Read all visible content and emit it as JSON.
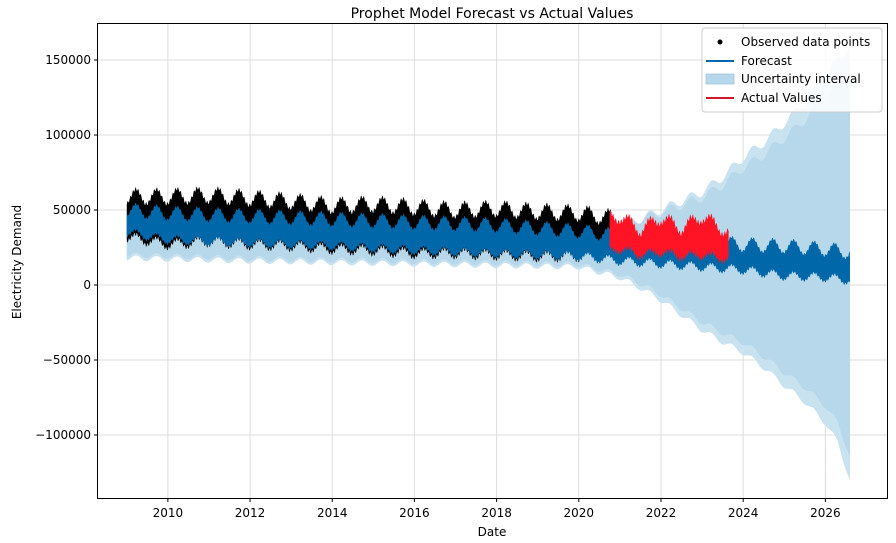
{
  "chart_data": {
    "type": "line",
    "title": "Prophet Model Forecast vs Actual Values",
    "xlabel": "Date",
    "ylabel": "Electricity Demand",
    "xlim": [
      2008.3,
      2027.5
    ],
    "ylim": [
      -142000,
      174000
    ],
    "x_ticks": [
      2010,
      2012,
      2014,
      2016,
      2018,
      2020,
      2022,
      2024,
      2026
    ],
    "y_ticks": [
      -100000,
      -50000,
      0,
      50000,
      100000,
      150000
    ],
    "y_tick_labels": [
      "−100000",
      "−50000",
      "0",
      "50000",
      "100000",
      "150000"
    ],
    "grid": true,
    "legend_position": "top-right",
    "legend": {
      "observed": "Observed data points",
      "forecast": "Forecast",
      "uncertainty": "Uncertainty interval",
      "actual": "Actual Values"
    },
    "colors": {
      "observed": "#000000",
      "forecast": "#0067a8",
      "uncertainty": "#b7d8ea",
      "uncertainty_light": "#c9e2f0",
      "actual": "#ff1426",
      "grid": "#dddddd"
    },
    "observed_range": [
      2009.0,
      2020.8
    ],
    "actual_range": [
      2020.75,
      2023.65
    ],
    "forecast_range": [
      2009.0,
      2026.6
    ],
    "observed_envelope": {
      "x": [
        2009.0,
        2010.0,
        2011.0,
        2012.0,
        2013.0,
        2014.0,
        2015.0,
        2016.0,
        2017.0,
        2018.0,
        2019.0,
        2020.0,
        2020.8
      ],
      "upper": [
        59000,
        59000,
        60000,
        58000,
        56000,
        53000,
        54000,
        52000,
        50000,
        51000,
        49000,
        48000,
        45000
      ],
      "lower": [
        32000,
        27000,
        29000,
        27000,
        26000,
        24000,
        23000,
        21000,
        21000,
        20000,
        19000,
        19000,
        20000
      ]
    },
    "actual_envelope": {
      "x": [
        2020.75,
        2021.0,
        2021.5,
        2022.0,
        2022.5,
        2023.0,
        2023.65
      ],
      "upper": [
        45000,
        46000,
        37000,
        45000,
        38000,
        46000,
        35000
      ],
      "lower": [
        23000,
        24000,
        20000,
        22000,
        19000,
        20000,
        17000
      ]
    },
    "forecast_envelope": {
      "x": [
        2009.0,
        2010.0,
        2012.0,
        2014.0,
        2016.0,
        2018.0,
        2020.0,
        2021.0,
        2022.0,
        2023.0,
        2024.0,
        2025.0,
        2026.0,
        2026.6
      ],
      "upper": [
        50000,
        48000,
        46000,
        44000,
        42000,
        40000,
        36000,
        33000,
        31000,
        29000,
        27000,
        26000,
        24000,
        22000
      ],
      "lower": [
        35000,
        30000,
        28000,
        26000,
        23000,
        21000,
        19000,
        16000,
        14000,
        12000,
        10000,
        6000,
        5000,
        3000
      ]
    },
    "uncertainty_band": {
      "x": [
        2009.0,
        2012.0,
        2016.0,
        2020.0,
        2021.0,
        2021.5,
        2022.0,
        2022.5,
        2023.0,
        2023.5,
        2024.0,
        2024.5,
        2025.0,
        2025.5,
        2026.0,
        2026.3,
        2026.6
      ],
      "upper": [
        54000,
        52000,
        49000,
        45000,
        42000,
        44000,
        50000,
        56000,
        62000,
        72000,
        85000,
        95000,
        108000,
        122000,
        140000,
        150000,
        160000
      ],
      "lower": [
        18000,
        16000,
        14000,
        12000,
        5000,
        -2000,
        -10000,
        -20000,
        -30000,
        -38000,
        -45000,
        -55000,
        -67000,
        -78000,
        -92000,
        -105000,
        -130000
      ]
    }
  }
}
